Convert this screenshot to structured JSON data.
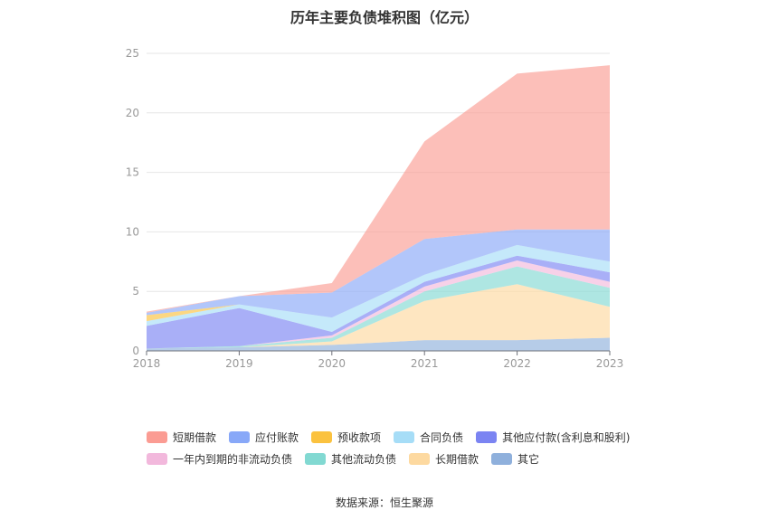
{
  "chart_data": {
    "type": "area",
    "stacked": true,
    "title": "历年主要负债堆积图（亿元）",
    "x": [
      "2018",
      "2019",
      "2020",
      "2021",
      "2022",
      "2023"
    ],
    "ylim": [
      0,
      25
    ],
    "yticks": [
      0,
      5,
      10,
      15,
      20,
      25
    ],
    "grid": true,
    "legend_position": "bottom",
    "series": [
      {
        "name": "其它",
        "color": "#8fb0dc",
        "values": [
          0.2,
          0.3,
          0.5,
          0.9,
          0.9,
          1.1
        ]
      },
      {
        "name": "长期借款",
        "color": "#fdd9a0",
        "values": [
          0.0,
          0.0,
          0.3,
          3.3,
          4.7,
          2.6
        ]
      },
      {
        "name": "其他流动负债",
        "color": "#82d9d2",
        "values": [
          0.0,
          0.1,
          0.3,
          0.8,
          1.5,
          1.6
        ]
      },
      {
        "name": "一年内到期的非流动负债",
        "color": "#f2b8dc",
        "values": [
          0.0,
          0.0,
          0.2,
          0.4,
          0.5,
          0.5
        ]
      },
      {
        "name": "其他应付款(含利息和股利)",
        "color": "#7b84f2",
        "values": [
          1.9,
          3.2,
          0.3,
          0.4,
          0.4,
          0.8
        ]
      },
      {
        "name": "合同负债",
        "color": "#a6ddf7",
        "values": [
          0.4,
          0.3,
          1.2,
          0.6,
          0.9,
          0.9
        ]
      },
      {
        "name": "预收款项",
        "color": "#fbc23f",
        "values": [
          0.5,
          0.0,
          0.0,
          0.0,
          0.0,
          0.0
        ]
      },
      {
        "name": "应付账款",
        "color": "#88a8f8",
        "values": [
          0.2,
          0.7,
          2.1,
          3.0,
          1.3,
          2.7
        ]
      },
      {
        "name": "短期借款",
        "color": "#fb9c93",
        "values": [
          0.1,
          0.0,
          0.8,
          8.2,
          13.1,
          13.8
        ]
      }
    ]
  },
  "legend": {
    "row1": [
      "短期借款",
      "应付账款",
      "预收款项",
      "合同负债",
      "其他应付款(含利息和股利)"
    ],
    "row2": [
      "一年内到期的非流动负债",
      "其他流动负债",
      "长期借款",
      "其它"
    ]
  },
  "source": "数据来源：恒生聚源"
}
